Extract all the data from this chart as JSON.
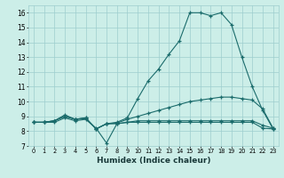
{
  "xlabel": "Humidex (Indice chaleur)",
  "background_color": "#cceee8",
  "grid_color": "#9ecece",
  "line_color": "#1a6b6b",
  "x_ticks": [
    0,
    1,
    2,
    3,
    4,
    5,
    6,
    7,
    8,
    9,
    10,
    11,
    12,
    13,
    14,
    15,
    16,
    17,
    18,
    19,
    20,
    21,
    22,
    23
  ],
  "y_ticks": [
    7,
    8,
    9,
    10,
    11,
    12,
    13,
    14,
    15,
    16
  ],
  "ylim": [
    7.0,
    16.5
  ],
  "xlim": [
    -0.5,
    23.5
  ],
  "series": [
    {
      "x": [
        0,
        1,
        2,
        3,
        4,
        5,
        6,
        7,
        8,
        9,
        10,
        11,
        12,
        13,
        14,
        15,
        16,
        17,
        18,
        19,
        20,
        21,
        22,
        23
      ],
      "y": [
        8.6,
        8.6,
        8.7,
        9.1,
        8.8,
        8.9,
        8.15,
        8.5,
        8.6,
        8.9,
        10.2,
        11.4,
        12.2,
        13.2,
        14.1,
        16.0,
        16.0,
        15.8,
        16.0,
        15.2,
        13.0,
        11.0,
        9.4,
        8.15
      ]
    },
    {
      "x": [
        0,
        1,
        2,
        3,
        4,
        5,
        6,
        7,
        8,
        9,
        10,
        11,
        12,
        13,
        14,
        15,
        16,
        17,
        18,
        19,
        20,
        21,
        22,
        23
      ],
      "y": [
        8.6,
        8.6,
        8.7,
        9.0,
        8.8,
        8.9,
        8.15,
        8.5,
        8.55,
        8.8,
        9.0,
        9.2,
        9.4,
        9.6,
        9.8,
        10.0,
        10.1,
        10.2,
        10.3,
        10.3,
        10.2,
        10.1,
        9.5,
        8.2
      ]
    },
    {
      "x": [
        0,
        1,
        2,
        3,
        4,
        5,
        6,
        7,
        8,
        9,
        10,
        11,
        12,
        13,
        14,
        15,
        16,
        17,
        18,
        19,
        20,
        21,
        22,
        23
      ],
      "y": [
        8.6,
        8.6,
        8.7,
        9.0,
        8.8,
        8.85,
        8.15,
        8.5,
        8.5,
        8.6,
        8.7,
        8.7,
        8.7,
        8.7,
        8.7,
        8.7,
        8.7,
        8.7,
        8.7,
        8.7,
        8.7,
        8.7,
        8.4,
        8.2
      ]
    },
    {
      "x": [
        0,
        1,
        2,
        3,
        4,
        5,
        6,
        7,
        8,
        9,
        10,
        11,
        12,
        13,
        14,
        15,
        16,
        17,
        18,
        19,
        20,
        21,
        22,
        23
      ],
      "y": [
        8.6,
        8.6,
        8.6,
        8.9,
        8.7,
        8.8,
        8.2,
        7.2,
        8.5,
        8.6,
        8.6,
        8.6,
        8.6,
        8.6,
        8.6,
        8.6,
        8.6,
        8.6,
        8.6,
        8.6,
        8.6,
        8.6,
        8.2,
        8.15
      ]
    }
  ]
}
